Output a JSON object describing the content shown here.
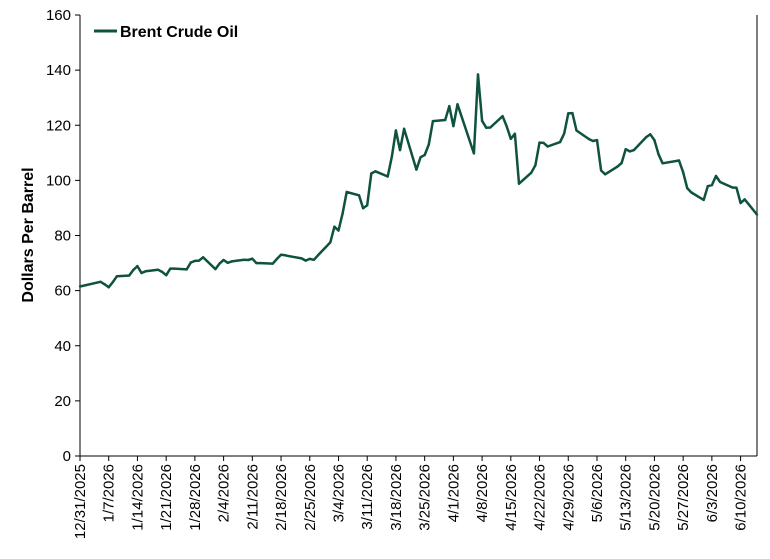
{
  "chart_data": {
    "type": "line",
    "title": "",
    "xlabel": "",
    "ylabel": "Dollars Per Barrel",
    "ylim": [
      0,
      160
    ],
    "yticks": [
      0,
      20,
      40,
      60,
      80,
      100,
      120,
      140,
      160
    ],
    "x_range": [
      "2025-12-31",
      "2026-06-14"
    ],
    "xtick_labels": [
      "12/31/2025",
      "1/7/2026",
      "1/14/2026",
      "1/21/2026",
      "1/28/2026",
      "2/4/2026",
      "2/11/2026",
      "2/18/2026",
      "2/25/2026",
      "3/4/2026",
      "3/11/2026",
      "3/18/2026",
      "3/25/2026",
      "4/1/2026",
      "4/8/2026",
      "4/15/2026",
      "4/22/2026",
      "4/29/2026",
      "5/6/2026",
      "5/13/2026",
      "5/20/2026",
      "5/27/2026",
      "6/3/2026",
      "6/10/2026"
    ],
    "grid": false,
    "legend_position": "top-left",
    "color": "#0f5240",
    "series": [
      {
        "name": "Brent Crude Oil",
        "x": [
          "2025-12-31",
          "2026-01-05",
          "2026-01-06",
          "2026-01-07",
          "2026-01-08",
          "2026-01-09",
          "2026-01-12",
          "2026-01-13",
          "2026-01-14",
          "2026-01-15",
          "2026-01-16",
          "2026-01-19",
          "2026-01-20",
          "2026-01-21",
          "2026-01-22",
          "2026-01-23",
          "2026-01-26",
          "2026-01-27",
          "2026-01-28",
          "2026-01-29",
          "2026-01-30",
          "2026-02-02",
          "2026-02-03",
          "2026-02-04",
          "2026-02-05",
          "2026-02-06",
          "2026-02-09",
          "2026-02-10",
          "2026-02-11",
          "2026-02-12",
          "2026-02-13",
          "2026-02-16",
          "2026-02-17",
          "2026-02-18",
          "2026-02-19",
          "2026-02-20",
          "2026-02-23",
          "2026-02-24",
          "2026-02-25",
          "2026-02-26",
          "2026-02-27",
          "2026-03-02",
          "2026-03-03",
          "2026-03-04",
          "2026-03-05",
          "2026-03-06",
          "2026-03-09",
          "2026-03-10",
          "2026-03-11",
          "2026-03-12",
          "2026-03-13",
          "2026-03-16",
          "2026-03-17",
          "2026-03-18",
          "2026-03-19",
          "2026-03-20",
          "2026-03-23",
          "2026-03-24",
          "2026-03-25",
          "2026-03-26",
          "2026-03-27",
          "2026-03-30",
          "2026-03-31",
          "2026-04-01",
          "2026-04-02",
          "2026-04-06",
          "2026-04-07",
          "2026-04-08",
          "2026-04-09",
          "2026-04-10",
          "2026-04-13",
          "2026-04-14",
          "2026-04-15",
          "2026-04-16",
          "2026-04-17",
          "2026-04-20",
          "2026-04-21",
          "2026-04-22",
          "2026-04-23",
          "2026-04-24",
          "2026-04-27",
          "2026-04-28",
          "2026-04-29",
          "2026-04-30",
          "2026-05-01",
          "2026-05-04",
          "2026-05-05",
          "2026-05-06",
          "2026-05-07",
          "2026-05-08",
          "2026-05-11",
          "2026-05-12",
          "2026-05-13",
          "2026-05-14",
          "2026-05-15",
          "2026-05-18",
          "2026-05-19",
          "2026-05-20",
          "2026-05-21",
          "2026-05-22",
          "2026-05-26",
          "2026-05-27",
          "2026-05-28",
          "2026-05-29",
          "2026-06-01",
          "2026-06-02",
          "2026-06-03",
          "2026-06-04",
          "2026-06-05",
          "2026-06-08",
          "2026-06-09",
          "2026-06-10",
          "2026-06-11",
          "2026-06-12",
          "2026-06-14"
        ],
        "values": [
          61.5,
          63.2,
          62.3,
          61.2,
          63.1,
          65.2,
          65.5,
          67.5,
          68.9,
          66.4,
          67.0,
          67.6,
          66.8,
          65.6,
          68.0,
          68.0,
          67.7,
          70.2,
          70.8,
          70.9,
          72.1,
          67.8,
          69.8,
          71.1,
          70.1,
          70.6,
          71.2,
          71.1,
          71.6,
          70.0,
          70.0,
          69.8,
          71.5,
          73.0,
          72.8,
          72.5,
          71.7,
          70.9,
          71.5,
          71.2,
          72.8,
          77.5,
          83.2,
          81.8,
          88.0,
          95.8,
          94.6,
          89.9,
          91.0,
          102.5,
          103.3,
          101.4,
          108.5,
          118.1,
          111.0,
          118.7,
          103.9,
          108.4,
          109.2,
          113.0,
          121.5,
          121.9,
          126.9,
          119.7,
          127.6,
          109.8,
          138.4,
          121.6,
          119.1,
          119.2,
          123.3,
          119.6,
          115.1,
          116.9,
          98.8,
          102.8,
          105.5,
          113.7,
          113.6,
          112.3,
          113.9,
          117.0,
          124.3,
          124.4,
          118.1,
          115.0,
          114.3,
          114.6,
          103.6,
          102.2,
          105.0,
          106.3,
          111.3,
          110.5,
          111.0,
          115.7,
          116.7,
          114.6,
          109.5,
          106.2,
          107.2,
          103.0,
          97.2,
          95.6,
          92.9,
          97.9,
          98.3,
          101.6,
          99.4,
          97.4,
          97.3,
          91.8,
          93.1,
          91.3,
          87.6
        ]
      }
    ]
  }
}
